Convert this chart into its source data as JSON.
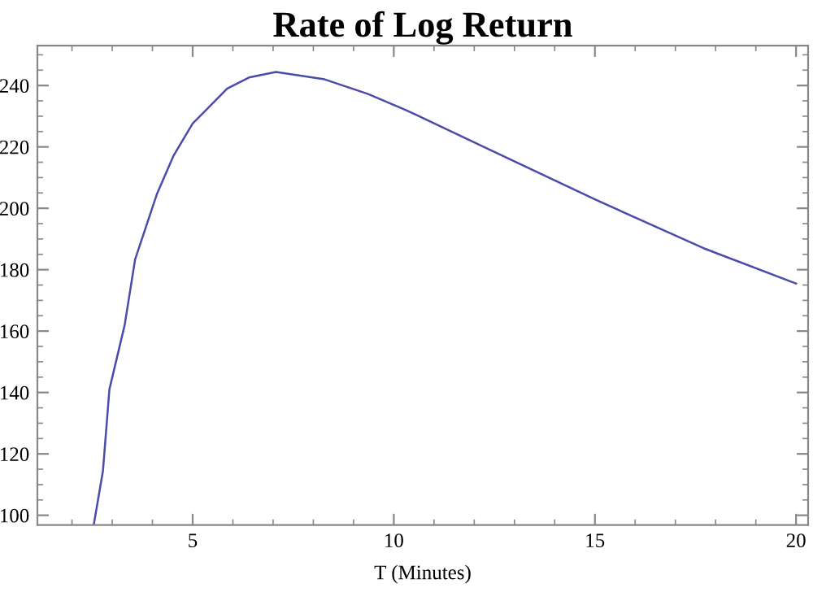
{
  "chart_data": {
    "type": "line",
    "title": "Rate of Log Return",
    "xlabel": "T (Minutes)",
    "xlim": [
      1.14,
      20.3
    ],
    "xticks": [
      5,
      10,
      15,
      20
    ],
    "ylim": [
      96.8,
      253
    ],
    "yticks": [
      100,
      120,
      140,
      160,
      180,
      200,
      220,
      240
    ],
    "grid": false,
    "legend": false,
    "series": [
      {
        "color": "#4b4bab",
        "x": [
          2.54,
          2.77,
          2.93,
          3.31,
          3.57,
          4.11,
          4.52,
          5.0,
          5.86,
          6.4,
          7.07,
          8.28,
          9.35,
          10.3,
          12.3,
          15.0,
          17.7,
          20.0
        ],
        "values": [
          96.8,
          114.5,
          141,
          162,
          183.4,
          204.6,
          217,
          227.6,
          239,
          242.6,
          244.4,
          242,
          237.3,
          232,
          219.6,
          202.9,
          187,
          175.5
        ]
      }
    ]
  }
}
